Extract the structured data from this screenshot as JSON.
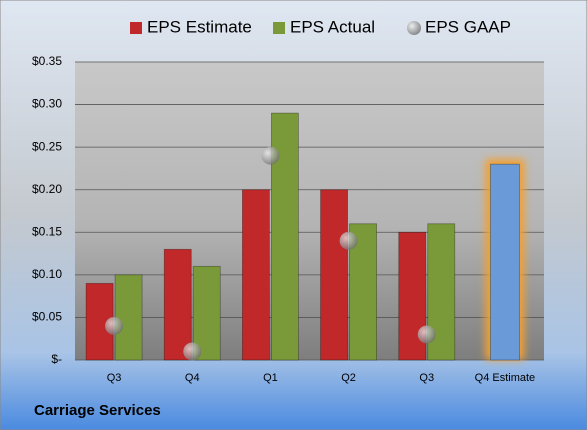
{
  "chart_data": {
    "type": "bar",
    "footer": "Carriage Services",
    "categories": [
      "Q3",
      "Q4",
      "Q1",
      "Q2",
      "Q3",
      "Q4 Estimate"
    ],
    "series": [
      {
        "name": "EPS Estimate",
        "color": "#c0282a",
        "values": [
          0.09,
          0.13,
          0.2,
          0.2,
          0.15,
          0.23
        ],
        "point_colors": [
          null,
          null,
          null,
          null,
          null,
          "#6a9ad8"
        ]
      },
      {
        "name": "EPS Actual",
        "color": "#7a9a3a",
        "values": [
          0.1,
          0.11,
          0.29,
          0.16,
          0.16,
          null
        ]
      },
      {
        "name": "EPS GAAP",
        "color": "#a0a0a0",
        "marker": "circle",
        "values": [
          0.04,
          0.01,
          0.24,
          0.14,
          0.03,
          null
        ]
      }
    ],
    "ylim": [
      0,
      0.35
    ],
    "yticks": [
      {
        "value": 0,
        "label": "$-"
      },
      {
        "value": 0.05,
        "label": "$0.05"
      },
      {
        "value": 0.1,
        "label": "$0.10"
      },
      {
        "value": 0.15,
        "label": "$0.15"
      },
      {
        "value": 0.2,
        "label": "$0.20"
      },
      {
        "value": 0.25,
        "label": "$0.25"
      },
      {
        "value": 0.3,
        "label": "$0.30"
      },
      {
        "value": 0.35,
        "label": "$0.35"
      }
    ],
    "grid": true,
    "legend": "top"
  }
}
